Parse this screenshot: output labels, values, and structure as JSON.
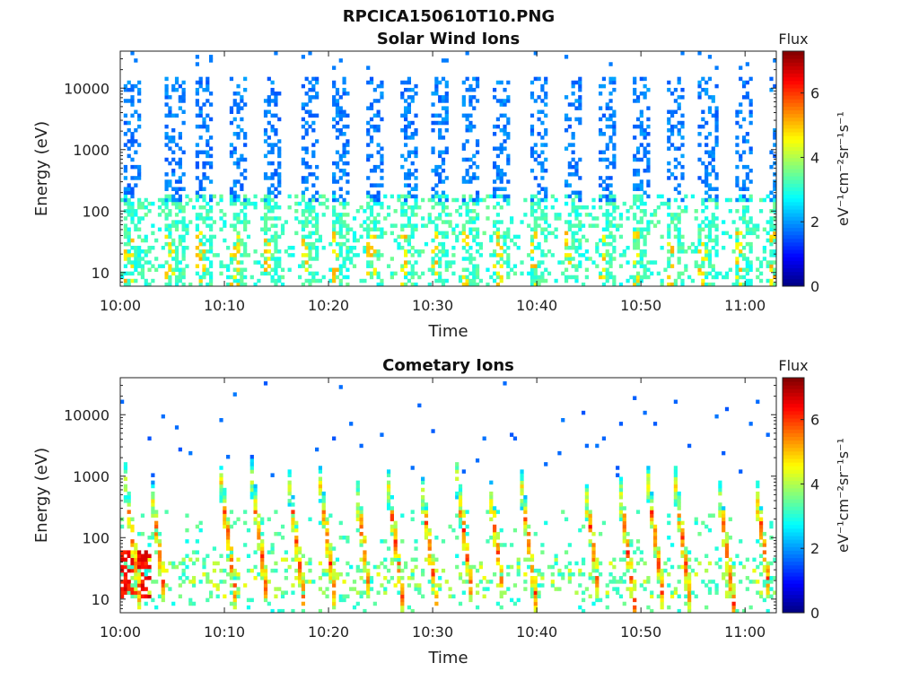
{
  "figure": {
    "title": "RPCICA150610T10.PNG"
  },
  "chart_data": [
    {
      "type": "heatmap",
      "title": "Solar Wind Ions",
      "xlabel": "Time",
      "ylabel": "Energy (eV)",
      "x_range": [
        "10:00",
        "11:03"
      ],
      "x_ticks": [
        "10:00",
        "10:10",
        "10:20",
        "10:30",
        "10:40",
        "10:50",
        "11:00"
      ],
      "y_scale": "log",
      "y_range": [
        6,
        40000
      ],
      "y_ticks": [
        "10",
        "100",
        "1000",
        "10000"
      ],
      "colorbar": {
        "title": "Flux",
        "label": "eV⁻¹cm⁻²sr⁻¹s⁻¹",
        "range": [
          0,
          7.3
        ],
        "ticks": [
          "0",
          "2",
          "4",
          "6"
        ],
        "colormap": "jet"
      },
      "sweep_start_minutes": [
        0.4,
        4.4,
        7.3,
        10.6,
        13.8,
        17.3,
        20.2,
        23.7,
        26.8,
        29.8,
        32.8,
        35.8,
        39.3,
        42.5,
        45.8,
        49.2,
        52.4,
        55.6,
        58.9,
        62.3
      ],
      "features": {
        "high_energy_band_eV": [
          150,
          15000
        ],
        "high_energy_flux": 1.5,
        "low_energy_band_eV": [
          6,
          200
        ],
        "low_energy_flux": 3.0,
        "peak_flux": 5.2
      }
    },
    {
      "type": "heatmap",
      "title": "Cometary Ions",
      "xlabel": "Time",
      "ylabel": "Energy (eV)",
      "x_range": [
        "10:00",
        "11:03"
      ],
      "x_ticks": [
        "10:00",
        "10:10",
        "10:20",
        "10:30",
        "10:40",
        "10:50",
        "11:00"
      ],
      "y_scale": "log",
      "y_range": [
        6,
        40000
      ],
      "y_ticks": [
        "10",
        "100",
        "1000",
        "10000"
      ],
      "colorbar": {
        "title": "Flux",
        "label": "eV⁻¹cm⁻²sr⁻¹s⁻¹",
        "range": [
          0,
          7.3
        ],
        "ticks": [
          "0",
          "2",
          "4",
          "6"
        ],
        "colormap": "jet"
      },
      "sweep_start_minutes": [
        0.4,
        2.8,
        9.6,
        12.6,
        16.1,
        19.1,
        22.5,
        25.6,
        28.8,
        32.3,
        35.3,
        38.4,
        44.5,
        47.8,
        50.6,
        53.2,
        57.3,
        60.9
      ],
      "features": {
        "streak_energy_eV": [
          6,
          1000
        ],
        "streak_peak_flux": 6.5,
        "background_low_energy_flux": 3.2,
        "sparse_high_energy_flux": 1.5,
        "low_energy_band_eV": [
          10,
          45
        ],
        "low_energy_band_flux": 4.5
      }
    }
  ]
}
